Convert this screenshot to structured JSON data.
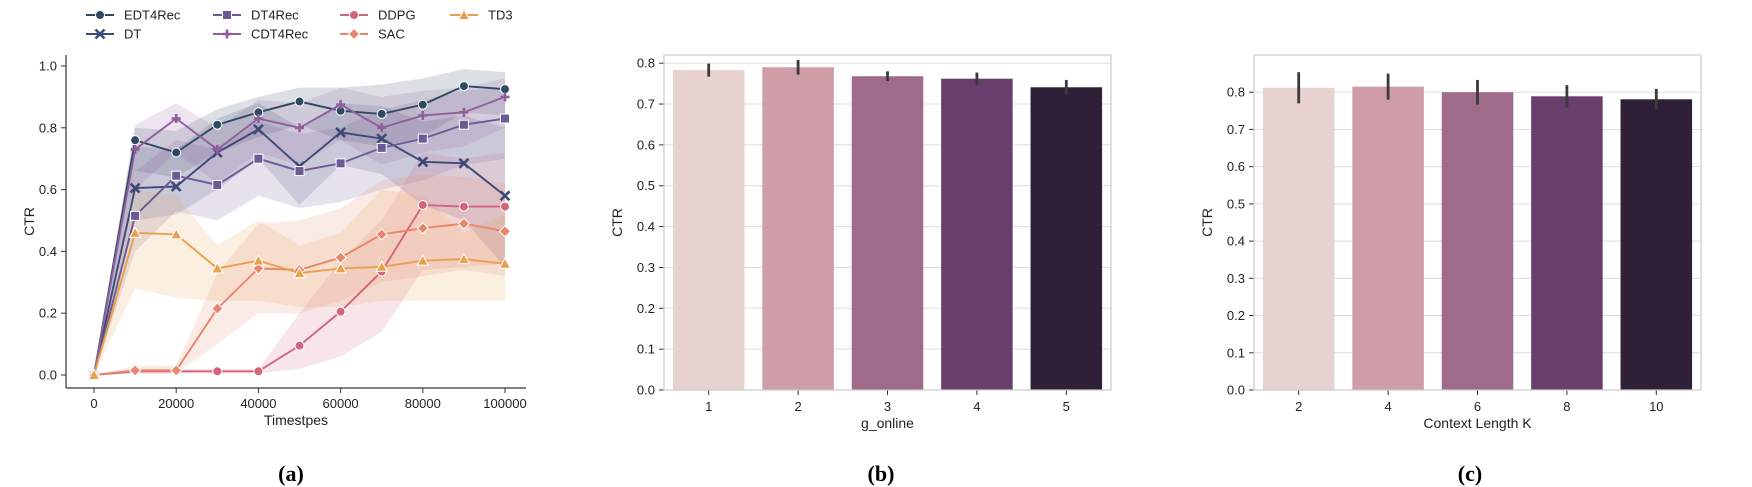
{
  "chart_data": [
    {
      "type": "line",
      "panel_label": "(a)",
      "xlabel": "Timestpes",
      "ylabel": "CTR",
      "xlim": [
        0,
        100000
      ],
      "ylim": [
        0,
        1
      ],
      "xticks": [
        0,
        20000,
        40000,
        60000,
        80000,
        100000
      ],
      "yticks": [
        0.0,
        0.2,
        0.4,
        0.6,
        0.8,
        1.0
      ],
      "grid": false,
      "legend_position": "top",
      "x": [
        0,
        10000,
        20000,
        30000,
        40000,
        50000,
        60000,
        70000,
        80000,
        90000,
        100000
      ],
      "series": [
        {
          "name": "EDT4Rec",
          "color": "#2e4a62",
          "marker": "circle",
          "values": [
            0.0,
            0.76,
            0.72,
            0.81,
            0.85,
            0.885,
            0.855,
            0.845,
            0.875,
            0.935,
            0.925
          ],
          "lower": [
            0.0,
            0.66,
            0.64,
            0.72,
            0.77,
            0.81,
            0.76,
            0.74,
            0.77,
            0.85,
            0.84
          ],
          "upper": [
            0.0,
            0.8,
            0.79,
            0.86,
            0.9,
            0.93,
            0.93,
            0.94,
            0.96,
            0.99,
            0.98
          ]
        },
        {
          "name": "DT",
          "color": "#3d4a78",
          "marker": "x",
          "values": [
            0.0,
            0.605,
            0.61,
            0.72,
            0.795,
            0.675,
            0.785,
            0.765,
            0.69,
            0.685,
            0.58
          ],
          "lower": [
            0.0,
            0.5,
            0.52,
            0.6,
            0.7,
            0.55,
            0.68,
            0.65,
            0.55,
            0.5,
            0.35
          ],
          "upper": [
            0.0,
            0.74,
            0.73,
            0.83,
            0.88,
            0.8,
            0.88,
            0.87,
            0.82,
            0.84,
            0.8
          ]
        },
        {
          "name": "DT4Rec",
          "color": "#6c5a96",
          "marker": "square",
          "values": [
            0.0,
            0.515,
            0.645,
            0.615,
            0.7,
            0.66,
            0.685,
            0.735,
            0.765,
            0.81,
            0.83
          ],
          "lower": [
            0.0,
            0.4,
            0.53,
            0.5,
            0.58,
            0.54,
            0.56,
            0.6,
            0.63,
            0.68,
            0.7
          ],
          "upper": [
            0.0,
            0.66,
            0.76,
            0.73,
            0.82,
            0.78,
            0.8,
            0.86,
            0.89,
            0.92,
            0.93
          ]
        },
        {
          "name": "CDT4Rec",
          "color": "#8f5f9c",
          "marker": "plus",
          "values": [
            0.0,
            0.73,
            0.83,
            0.73,
            0.83,
            0.8,
            0.875,
            0.8,
            0.84,
            0.85,
            0.9
          ],
          "lower": [
            0.0,
            0.6,
            0.72,
            0.62,
            0.72,
            0.68,
            0.76,
            0.68,
            0.72,
            0.74,
            0.8
          ],
          "upper": [
            0.0,
            0.81,
            0.88,
            0.8,
            0.89,
            0.88,
            0.93,
            0.9,
            0.92,
            0.93,
            0.96
          ]
        },
        {
          "name": "DDPG",
          "color": "#d2647d",
          "marker": "circle",
          "values": [
            0.0,
            0.012,
            0.012,
            0.012,
            0.012,
            0.095,
            0.205,
            0.335,
            0.55,
            0.545,
            0.545
          ],
          "lower": [
            0.0,
            0.005,
            0.005,
            0.005,
            0.005,
            0.02,
            0.06,
            0.14,
            0.34,
            0.35,
            0.36
          ],
          "upper": [
            0.0,
            0.02,
            0.02,
            0.02,
            0.02,
            0.2,
            0.37,
            0.5,
            0.72,
            0.7,
            0.72
          ]
        },
        {
          "name": "SAC",
          "color": "#e8866b",
          "marker": "diamond",
          "values": [
            0.0,
            0.015,
            0.015,
            0.215,
            0.345,
            0.34,
            0.38,
            0.455,
            0.475,
            0.49,
            0.465
          ],
          "lower": [
            0.0,
            0.005,
            0.005,
            0.1,
            0.2,
            0.2,
            0.24,
            0.3,
            0.32,
            0.34,
            0.32
          ],
          "upper": [
            0.0,
            0.03,
            0.03,
            0.33,
            0.49,
            0.5,
            0.54,
            0.63,
            0.65,
            0.64,
            0.62
          ]
        },
        {
          "name": "TD3",
          "color": "#e8a04e",
          "marker": "triangle",
          "values": [
            0.0,
            0.46,
            0.455,
            0.345,
            0.37,
            0.33,
            0.345,
            0.35,
            0.37,
            0.375,
            0.36
          ],
          "lower": [
            0.0,
            0.28,
            0.25,
            0.24,
            0.24,
            0.22,
            0.22,
            0.24,
            0.24,
            0.24,
            0.24
          ],
          "upper": [
            0.0,
            0.6,
            0.58,
            0.42,
            0.5,
            0.42,
            0.46,
            0.6,
            0.58,
            0.46,
            0.52
          ]
        }
      ]
    },
    {
      "type": "bar",
      "panel_label": "(b)",
      "xlabel": "g_online",
      "ylabel": "CTR",
      "ylim": [
        0,
        0.82
      ],
      "yticks": [
        0.0,
        0.1,
        0.2,
        0.3,
        0.4,
        0.5,
        0.6,
        0.7,
        0.8
      ],
      "grid": true,
      "categories": [
        "1",
        "2",
        "3",
        "4",
        "5"
      ],
      "values": [
        0.783,
        0.79,
        0.768,
        0.762,
        0.741
      ],
      "errors": [
        0.016,
        0.018,
        0.012,
        0.015,
        0.018
      ],
      "colors": [
        "#e8d2d0",
        "#cf9da8",
        "#9e6b8a",
        "#673f6a",
        "#2f1f37"
      ]
    },
    {
      "type": "bar",
      "panel_label": "(c)",
      "xlabel": "Context Length K",
      "ylabel": "CTR",
      "ylim": [
        0,
        0.9
      ],
      "yticks": [
        0.0,
        0.1,
        0.2,
        0.3,
        0.4,
        0.5,
        0.6,
        0.7,
        0.8
      ],
      "grid": true,
      "categories": [
        "2",
        "4",
        "6",
        "8",
        "10"
      ],
      "values": [
        0.812,
        0.815,
        0.8,
        0.789,
        0.781
      ],
      "errors": [
        0.042,
        0.035,
        0.033,
        0.03,
        0.028
      ],
      "colors": [
        "#e8d2d0",
        "#cf9da8",
        "#9e6b8a",
        "#673f6a",
        "#2f1f37"
      ]
    }
  ]
}
